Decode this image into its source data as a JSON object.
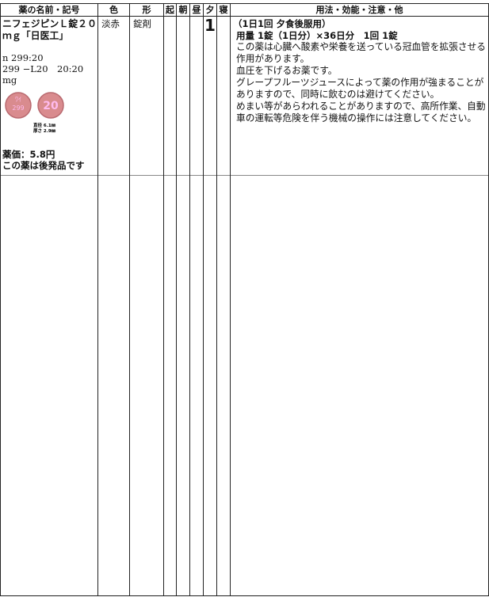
{
  "header": {
    "columns": [
      "薬の名前・記号",
      "色",
      "形",
      "起",
      "朝",
      "昼",
      "夕",
      "寝",
      "用法・効能・注意・他"
    ]
  },
  "rows": [
    {
      "name": "ニフェジピンＬ錠２０ｍｇ「日医工」",
      "code_lines": [
        "n 299:20",
        "299 −L20　20:20",
        "mg"
      ],
      "pill": {
        "imprint_left": [
          "ﾜｲ",
          "299"
        ],
        "imprint_right": "20",
        "diameter": "直径 6.1㎜",
        "thickness": "厚さ 2.9㎜"
      },
      "price": "薬価：5.8円",
      "generic_note": "この薬は後発品です",
      "color": "淡赤",
      "form": "錠剤",
      "evening": "1",
      "usage": "（1日1回 夕食後服用）",
      "dose": "用量 1錠（1日分）×36日分　1回 1錠",
      "notes": [
        "この薬は心臓へ酸素や栄養を送っている冠血管を拡張させる作用があります。",
        "血圧を下げるお薬です。",
        "グレープフルーツジュースによって薬の作用が強まることがありますので、同時に飲むのは避けてください。",
        "めまい等があらわれることがありますので、高所作業、自動車の運転等危険を伴う機械の操作には注意してください。"
      ]
    }
  ]
}
